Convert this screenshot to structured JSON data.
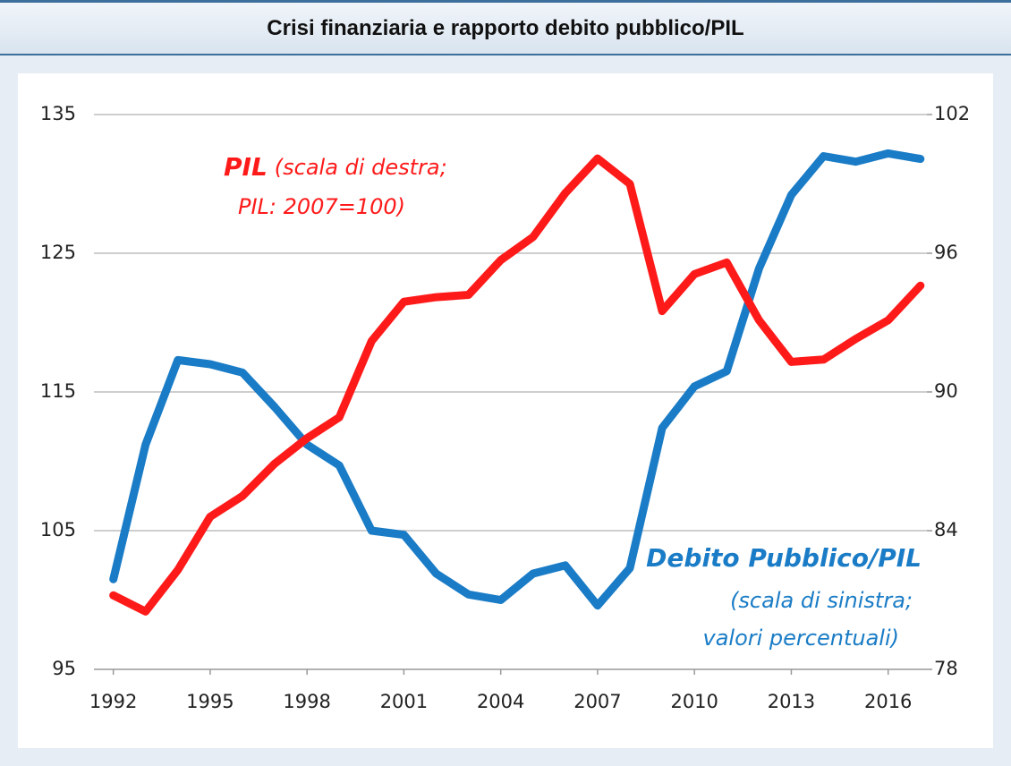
{
  "chart_data": {
    "type": "line",
    "title": "Crisi finanziaria e rapporto debito pubblico/PIL",
    "x": [
      1992,
      1993,
      1994,
      1995,
      1996,
      1997,
      1998,
      1999,
      2000,
      2001,
      2002,
      2003,
      2004,
      2005,
      2006,
      2007,
      2008,
      2009,
      2010,
      2011,
      2012,
      2013,
      2014,
      2015,
      2016,
      2017
    ],
    "xlim": [
      1991.4,
      2017.2
    ],
    "xticks": [
      1992,
      1995,
      1998,
      2001,
      2004,
      2007,
      2010,
      2013,
      2016
    ],
    "ylim": [
      95,
      135
    ],
    "yticks": [
      95,
      105,
      115,
      125,
      135
    ],
    "y2lim": [
      78,
      102
    ],
    "y2ticks": [
      78,
      84,
      90,
      96,
      102
    ],
    "grid": true,
    "series": [
      {
        "name": "Debito Pubblico/PIL",
        "color": "#1a7cc6",
        "values": [
          101.5,
          111.2,
          117.3,
          117.0,
          116.4,
          113.9,
          111.2,
          109.7,
          105.0,
          104.7,
          101.9,
          100.4,
          100.0,
          101.9,
          102.5,
          99.6,
          102.3,
          112.4,
          115.4,
          116.5,
          123.9,
          129.2,
          132.0,
          131.6,
          132.2,
          131.8
        ]
      },
      {
        "name": "PIL",
        "color": "#ff1a1a",
        "axis": "y2",
        "values": [
          81.2,
          80.5,
          82.3,
          84.6,
          85.5,
          86.9,
          88.0,
          88.9,
          92.2,
          93.9,
          94.1,
          94.2,
          95.7,
          96.7,
          98.6,
          100.1,
          99.0,
          93.5,
          95.1,
          95.6,
          93.1,
          91.3,
          91.4,
          92.3,
          93.1,
          94.6
        ]
      }
    ],
    "annotations": [
      [
        "(scala di sinistra;",
        "valori percentuali)"
      ],
      [
        "(scala di destra;",
        "PIL: 2007=100)"
      ]
    ]
  }
}
